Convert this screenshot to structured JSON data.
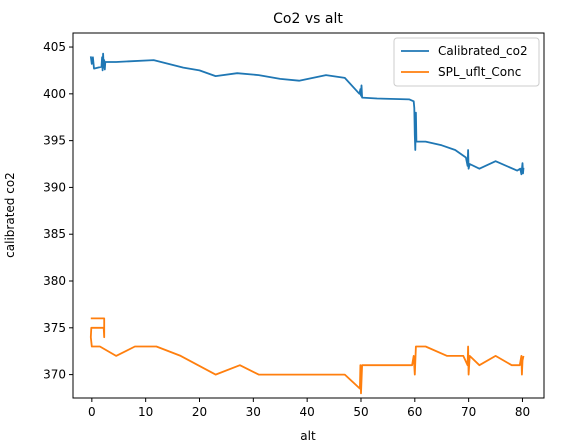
{
  "chart_data": {
    "type": "line",
    "title": "Co2 vs alt",
    "xlabel": "alt",
    "ylabel": "calibrated co2",
    "xlim": [
      -3.5,
      84
    ],
    "ylim": [
      367.5,
      406.5
    ],
    "xticks": [
      0,
      10,
      20,
      30,
      40,
      50,
      60,
      70,
      80
    ],
    "yticks": [
      370,
      375,
      380,
      385,
      390,
      395,
      400,
      405
    ],
    "grid": false,
    "legend_position": "top-right",
    "series": [
      {
        "name": "Calibrated_co2",
        "color": "#1f77b4",
        "points": [
          [
            -0.2,
            404.0
          ],
          [
            0.0,
            403.2
          ],
          [
            0.2,
            403.9
          ],
          [
            0.4,
            402.7
          ],
          [
            1.8,
            402.9
          ],
          [
            1.9,
            403.9
          ],
          [
            2.0,
            402.5
          ],
          [
            2.1,
            404.3
          ],
          [
            2.2,
            402.8
          ],
          [
            2.3,
            403.6
          ],
          [
            2.4,
            402.6
          ],
          [
            2.5,
            403.4
          ],
          [
            4.5,
            403.4
          ],
          [
            11.5,
            403.6
          ],
          [
            17.0,
            402.8
          ],
          [
            20.0,
            402.5
          ],
          [
            23.0,
            401.9
          ],
          [
            27.0,
            402.2
          ],
          [
            31.0,
            402.0
          ],
          [
            35.0,
            401.6
          ],
          [
            38.5,
            401.4
          ],
          [
            43.5,
            402.0
          ],
          [
            47.0,
            401.7
          ],
          [
            49.7,
            400.0
          ],
          [
            49.9,
            400.5
          ],
          [
            50.0,
            399.8
          ],
          [
            50.1,
            400.9
          ],
          [
            50.2,
            399.6
          ],
          [
            53.0,
            399.5
          ],
          [
            59.0,
            399.4
          ],
          [
            59.8,
            399.2
          ],
          [
            59.9,
            398.5
          ],
          [
            60.0,
            395.6
          ],
          [
            60.1,
            394.0
          ],
          [
            60.2,
            398.0
          ],
          [
            60.3,
            394.9
          ],
          [
            62.0,
            394.9
          ],
          [
            65.0,
            394.5
          ],
          [
            67.5,
            394.0
          ],
          [
            69.5,
            393.2
          ],
          [
            69.8,
            392.3
          ],
          [
            69.9,
            394.0
          ],
          [
            70.0,
            392.0
          ],
          [
            70.2,
            392.5
          ],
          [
            72.0,
            392.0
          ],
          [
            75.0,
            392.8
          ],
          [
            79.0,
            391.8
          ],
          [
            79.6,
            392.0
          ],
          [
            79.8,
            391.4
          ],
          [
            80.0,
            392.6
          ],
          [
            80.1,
            391.5
          ],
          [
            80.2,
            392.1
          ]
        ]
      },
      {
        "name": "SPL_uflt_Conc",
        "color": "#ff7f0e",
        "points": [
          [
            -0.2,
            376.0
          ],
          [
            2.3,
            376.0
          ],
          [
            2.3,
            374.0
          ],
          [
            2.2,
            375.0
          ],
          [
            -0.1,
            375.0
          ],
          [
            -0.2,
            374.0
          ],
          [
            0.0,
            373.0
          ],
          [
            1.5,
            373.0
          ],
          [
            4.5,
            372.0
          ],
          [
            8.0,
            373.0
          ],
          [
            12.0,
            373.0
          ],
          [
            16.5,
            372.0
          ],
          [
            23.0,
            370.0
          ],
          [
            27.5,
            371.0
          ],
          [
            31.0,
            370.0
          ],
          [
            47.0,
            370.0
          ],
          [
            49.8,
            368.5
          ],
          [
            49.9,
            371.0
          ],
          [
            50.0,
            368.0
          ],
          [
            50.2,
            371.0
          ],
          [
            59.5,
            371.0
          ],
          [
            59.8,
            372.0
          ],
          [
            60.0,
            370.0
          ],
          [
            60.2,
            373.0
          ],
          [
            62.0,
            373.0
          ],
          [
            66.0,
            372.0
          ],
          [
            69.0,
            372.0
          ],
          [
            69.8,
            371.0
          ],
          [
            69.9,
            373.0
          ],
          [
            70.0,
            370.0
          ],
          [
            70.2,
            372.0
          ],
          [
            72.0,
            371.0
          ],
          [
            75.0,
            372.0
          ],
          [
            78.0,
            371.0
          ],
          [
            79.5,
            371.0
          ],
          [
            79.8,
            372.0
          ],
          [
            79.9,
            370.0
          ],
          [
            80.0,
            371.5
          ],
          [
            80.2,
            372.0
          ]
        ]
      }
    ]
  }
}
